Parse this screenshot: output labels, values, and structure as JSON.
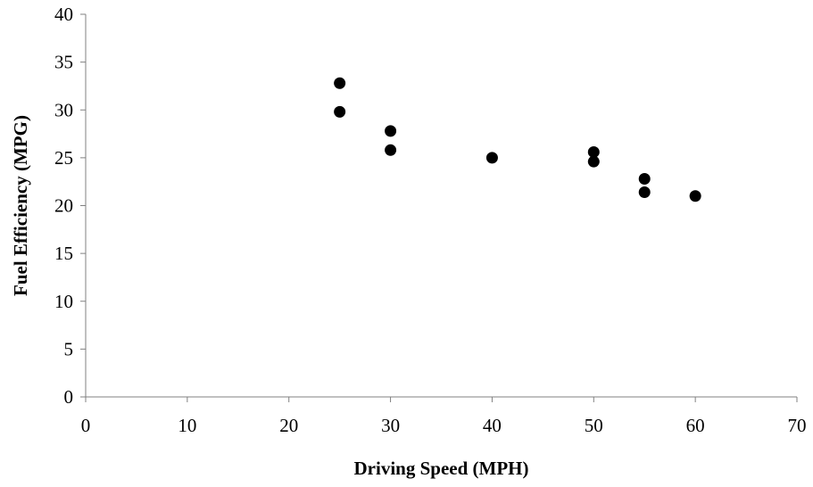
{
  "chart_data": {
    "type": "scatter",
    "title": "",
    "xlabel": "Driving Speed (MPH)",
    "ylabel": "Fuel Efficiency (MPG)",
    "xlim": [
      0,
      70
    ],
    "ylim": [
      0,
      40
    ],
    "x_ticks": [
      0,
      10,
      20,
      30,
      40,
      50,
      60,
      70
    ],
    "y_ticks": [
      0,
      5,
      10,
      15,
      20,
      25,
      30,
      35,
      40
    ],
    "grid": false,
    "marker_color": "#000000",
    "points": [
      {
        "x": 25,
        "y": 32.8
      },
      {
        "x": 25,
        "y": 29.8
      },
      {
        "x": 30,
        "y": 27.8
      },
      {
        "x": 30,
        "y": 25.8
      },
      {
        "x": 40,
        "y": 25.0
      },
      {
        "x": 50,
        "y": 25.6
      },
      {
        "x": 50,
        "y": 24.6
      },
      {
        "x": 55,
        "y": 22.8
      },
      {
        "x": 55,
        "y": 21.4
      },
      {
        "x": 60,
        "y": 21.0
      }
    ]
  }
}
